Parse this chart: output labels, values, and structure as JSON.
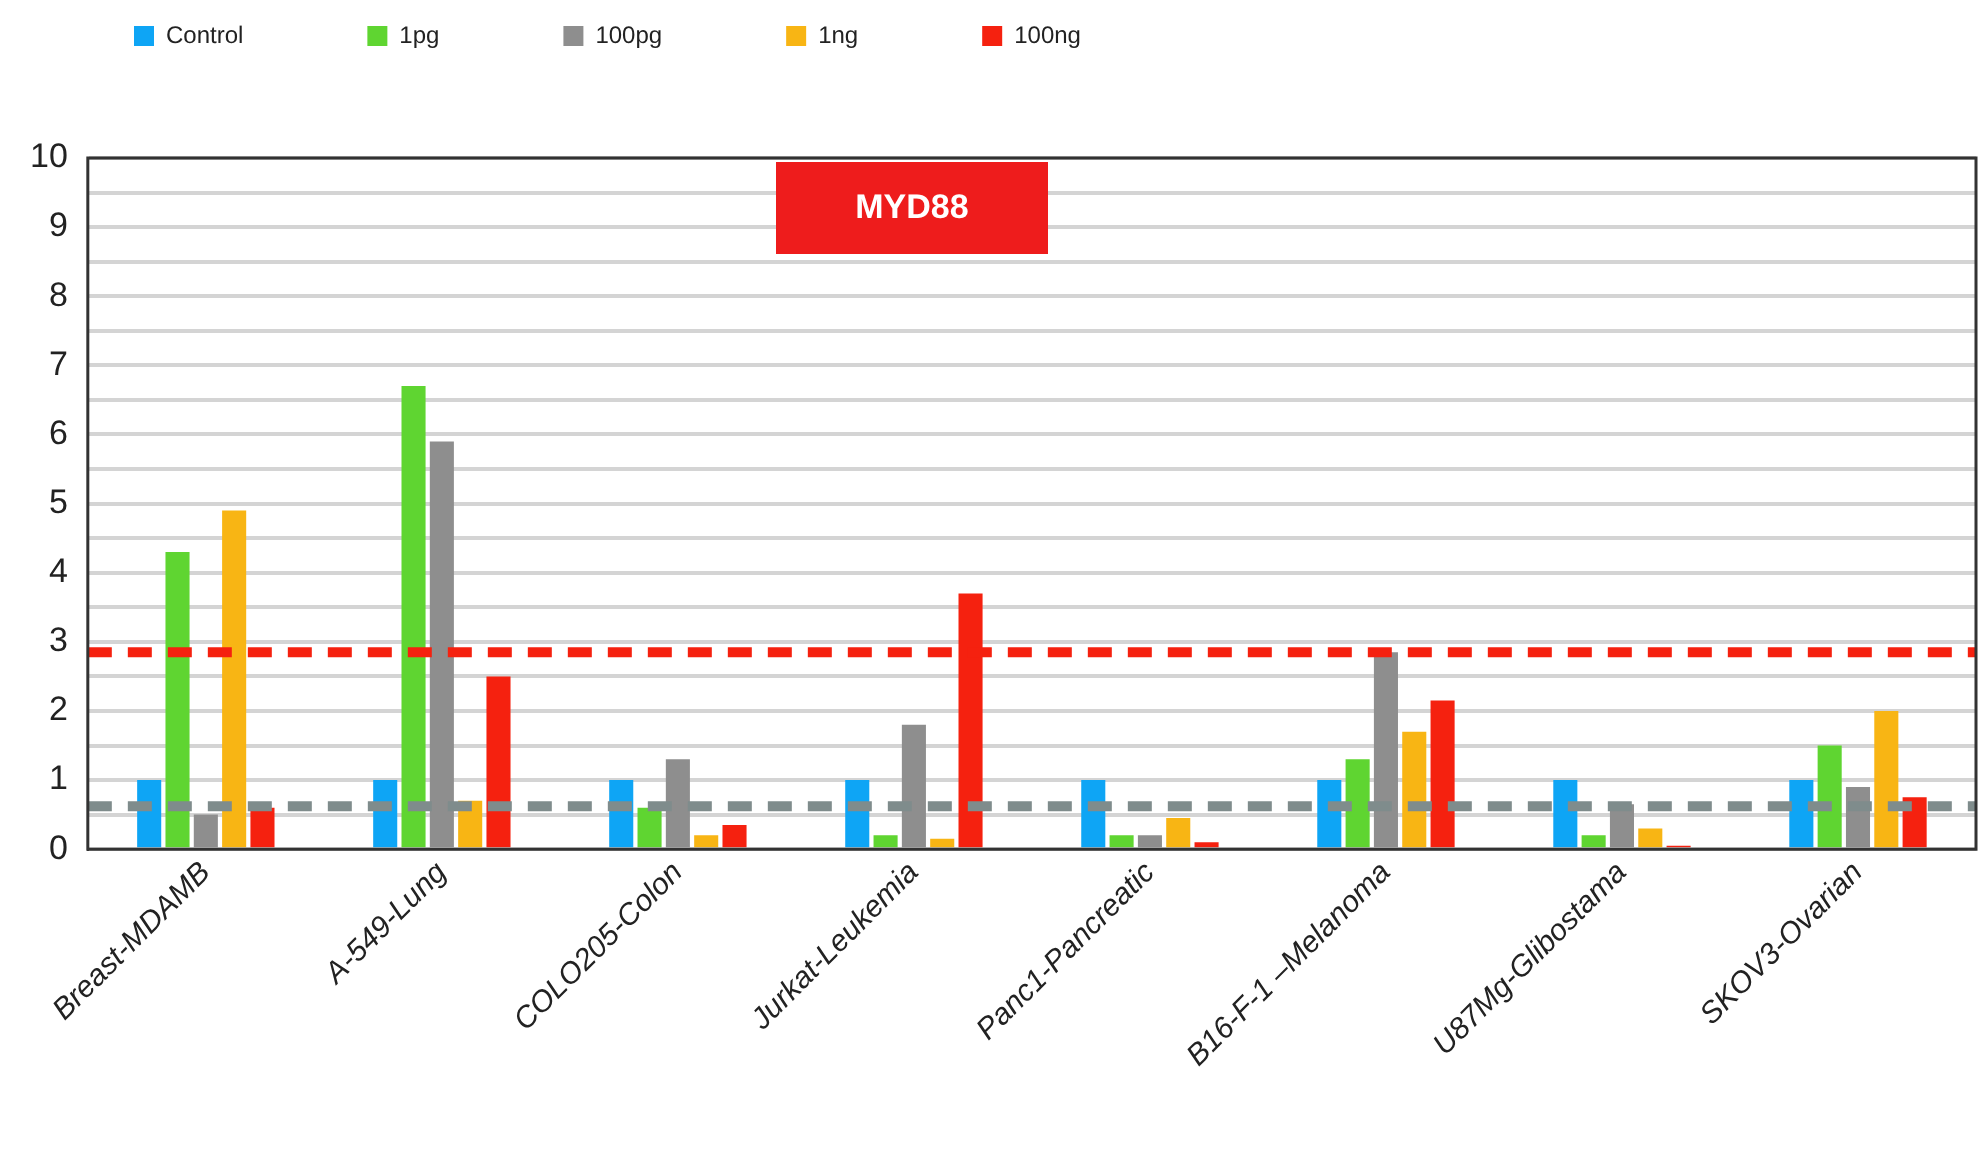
{
  "chart_data": {
    "type": "bar",
    "title": "MYD88",
    "categories": [
      "Breast-MDAMB",
      "A-549-Lung",
      "COLO205-Colon",
      "Jurkat-Leukemia",
      "Panc1-Pancreatic",
      "B16-F-1 –Melanoma",
      "U87Mg-Glibostama",
      "SKOV3-Ovarian"
    ],
    "series": [
      {
        "name": "Control",
        "color": "#0ea5f5",
        "values": [
          1,
          1,
          1,
          1,
          1,
          1,
          1,
          1
        ]
      },
      {
        "name": "1pg",
        "color": "#5fd531",
        "values": [
          4.3,
          6.7,
          0.6,
          0.2,
          0.2,
          1.3,
          0.2,
          1.5
        ]
      },
      {
        "name": "100pg",
        "color": "#8e8e8e",
        "values": [
          0.5,
          5.9,
          1.3,
          1.8,
          0.2,
          2.85,
          0.65,
          0.9
        ]
      },
      {
        "name": "1ng",
        "color": "#f8b514",
        "values": [
          4.9,
          0.7,
          0.2,
          0.15,
          0.45,
          1.7,
          0.3,
          2.0
        ]
      },
      {
        "name": "100ng",
        "color": "#f5210f",
        "values": [
          0.6,
          2.5,
          0.35,
          3.7,
          0.1,
          2.15,
          0.05,
          0.75
        ]
      }
    ],
    "ylim": [
      0,
      10
    ],
    "yticks": [
      0,
      {
        "value": 0.5,
        "label": null
      },
      1,
      {
        "value": 1.5,
        "label": null
      },
      2,
      {
        "value": 2.5,
        "label": null
      },
      3,
      {
        "value": 3.5,
        "label": null
      },
      4,
      {
        "value": 4.5,
        "label": null
      },
      5,
      {
        "value": 5.5,
        "label": null
      },
      6,
      {
        "value": 6.5,
        "label": null
      },
      7,
      {
        "value": 7.5,
        "label": null
      },
      8,
      {
        "value": 8.5,
        "label": null
      },
      9,
      {
        "value": 9.5,
        "label": null
      },
      10
    ],
    "ref_lines": [
      {
        "axis": "y",
        "value": 2.85,
        "color": "#f5210f",
        "line_style": "dashed"
      },
      {
        "axis": "y",
        "value": 0.62,
        "color": "#7f8c8c",
        "line_style": "dashed"
      }
    ],
    "grid": "y",
    "legend": "top left"
  }
}
